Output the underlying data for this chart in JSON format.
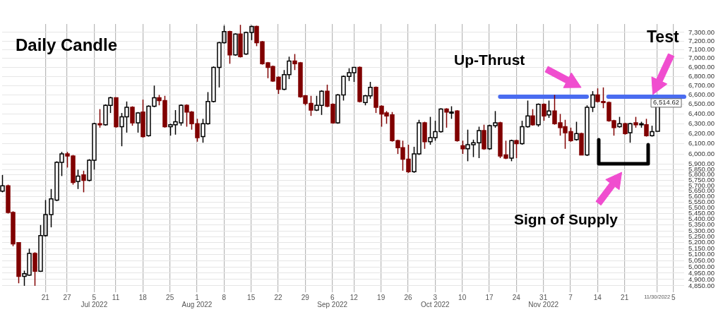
{
  "chart_data": {
    "type": "candlestick",
    "title": "Daily Candle",
    "categories": [
      null,
      null,
      null,
      null,
      null,
      null,
      null,
      null,
      "21",
      null,
      null,
      null,
      "27",
      null,
      null,
      null,
      null,
      "5\nJul 2022",
      null,
      null,
      null,
      "11",
      null,
      null,
      null,
      null,
      "18",
      null,
      null,
      null,
      null,
      "25",
      null,
      null,
      null,
      null,
      "1\nAug 2022",
      null,
      null,
      null,
      null,
      "8",
      null,
      null,
      null,
      null,
      "15",
      null,
      null,
      null,
      null,
      "22",
      null,
      null,
      null,
      null,
      "29",
      null,
      null,
      null,
      null,
      "6\nSep 2022",
      null,
      null,
      null,
      "12",
      null,
      null,
      null,
      null,
      "19",
      null,
      null,
      null,
      null,
      "26",
      null,
      null,
      null,
      null,
      "3\nOct 2022",
      null,
      null,
      null,
      null,
      "10",
      null,
      null,
      null,
      null,
      "17",
      null,
      null,
      null,
      null,
      "24",
      null,
      null,
      null,
      null,
      "31\nNov 2022",
      null,
      null,
      null,
      null,
      "7",
      null,
      null,
      null,
      null,
      "14",
      null,
      null,
      null,
      null,
      "21",
      null,
      null,
      null,
      null,
      null,
      "11/30/2022",
      null,
      null,
      "5",
      null,
      null
    ],
    "ohlc": [
      [
        5650,
        5800,
        5640,
        5700
      ],
      [
        5700,
        5710,
        5450,
        5460
      ],
      [
        5460,
        5470,
        5170,
        5190
      ],
      [
        5200,
        5200,
        4870,
        4925
      ],
      [
        4925,
        4970,
        4850,
        4945
      ],
      [
        4935,
        5150,
        4930,
        5110
      ],
      [
        5110,
        5120,
        4850,
        4965
      ],
      [
        4965,
        5350,
        4960,
        5260
      ],
      [
        5260,
        5570,
        5250,
        5440
      ],
      [
        5440,
        5670,
        5330,
        5580
      ],
      [
        5570,
        5930,
        5560,
        5920
      ],
      [
        5920,
        6020,
        5790,
        6000
      ],
      [
        6000,
        6020,
        5870,
        5980
      ],
      [
        5980,
        5990,
        5710,
        5730
      ],
      [
        5740,
        5850,
        5670,
        5790
      ],
      [
        5800,
        5840,
        5640,
        5750
      ],
      [
        5750,
        5950,
        5740,
        5940
      ],
      [
        5940,
        6310,
        5850,
        6300
      ],
      [
        6300,
        6450,
        6260,
        6290
      ],
      [
        6290,
        6500,
        6280,
        6490
      ],
      [
        6490,
        6580,
        6410,
        6570
      ],
      [
        6570,
        6570,
        6260,
        6270
      ],
      [
        6270,
        6410,
        6075,
        6370
      ],
      [
        6370,
        6530,
        6210,
        6470
      ],
      [
        6470,
        6480,
        6280,
        6310
      ],
      [
        6310,
        6420,
        6210,
        6410
      ],
      [
        6420,
        6550,
        6160,
        6170
      ],
      [
        6180,
        6490,
        6170,
        6480
      ],
      [
        6480,
        6700,
        6470,
        6570
      ],
      [
        6570,
        6600,
        6490,
        6540
      ],
      [
        6540,
        6590,
        6260,
        6270
      ],
      [
        6270,
        6300,
        6180,
        6290
      ],
      [
        6290,
        6440,
        6190,
        6320
      ],
      [
        6310,
        6500,
        6280,
        6490
      ],
      [
        6490,
        6500,
        6270,
        6420
      ],
      [
        6420,
        6430,
        6240,
        6300
      ],
      [
        6300,
        6350,
        6120,
        6160
      ],
      [
        6170,
        6350,
        6110,
        6300
      ],
      [
        6300,
        6630,
        6290,
        6530
      ],
      [
        6530,
        6910,
        6520,
        6900
      ],
      [
        6900,
        7190,
        6680,
        7180
      ],
      [
        7180,
        7380,
        7170,
        7310
      ],
      [
        7310,
        7320,
        6940,
        7040
      ],
      [
        7040,
        7290,
        7030,
        7280
      ],
      [
        7280,
        7390,
        7010,
        7020
      ],
      [
        7050,
        7310,
        7040,
        7300
      ],
      [
        7300,
        7380,
        7210,
        7370
      ],
      [
        7370,
        7380,
        7140,
        7180
      ],
      [
        7190,
        7200,
        6930,
        6940
      ],
      [
        6950,
        6960,
        6780,
        6900
      ],
      [
        6910,
        6920,
        6740,
        6750
      ],
      [
        6790,
        6800,
        6610,
        6660
      ],
      [
        6660,
        6870,
        6650,
        6820
      ],
      [
        6820,
        7020,
        6770,
        6970
      ],
      [
        6970,
        7050,
        6870,
        6940
      ],
      [
        6950,
        6960,
        6570,
        6580
      ],
      [
        6590,
        6600,
        6490,
        6510
      ],
      [
        6510,
        6590,
        6380,
        6440
      ],
      [
        6440,
        6590,
        6430,
        6490
      ],
      [
        6490,
        6650,
        6390,
        6640
      ],
      [
        6640,
        6710,
        6470,
        6480
      ],
      [
        6500,
        6510,
        6300,
        6310
      ],
      [
        6310,
        6610,
        6300,
        6600
      ],
      [
        6600,
        6810,
        6540,
        6800
      ],
      [
        6800,
        6890,
        6750,
        6840
      ],
      [
        6840,
        6900,
        6740,
        6900
      ],
      [
        6900,
        6910,
        6520,
        6530
      ],
      [
        6520,
        6600,
        6490,
        6590
      ],
      [
        6590,
        6740,
        6560,
        6680
      ],
      [
        6680,
        6690,
        6410,
        6470
      ],
      [
        6480,
        6490,
        6270,
        6400
      ],
      [
        6410,
        6430,
        6300,
        6380
      ],
      [
        6390,
        6420,
        6120,
        6130
      ],
      [
        6130,
        6140,
        6000,
        6060
      ],
      [
        6060,
        6130,
        5840,
        5950
      ],
      [
        5950,
        6090,
        5820,
        5830
      ],
      [
        5830,
        6070,
        5820,
        6000
      ],
      [
        6000,
        6340,
        5990,
        6310
      ],
      [
        6310,
        6320,
        6050,
        6120
      ],
      [
        6120,
        6370,
        6090,
        6160
      ],
      [
        6160,
        6330,
        6130,
        6220
      ],
      [
        6220,
        6460,
        6210,
        6450
      ],
      [
        6450,
        6460,
        6260,
        6420
      ],
      [
        6420,
        6480,
        6350,
        6410
      ],
      [
        6430,
        6440,
        6120,
        6130
      ],
      [
        6080,
        6130,
        6000,
        6050
      ],
      [
        6050,
        6240,
        5930,
        6090
      ],
      [
        6090,
        6140,
        5970,
        6110
      ],
      [
        6110,
        6270,
        5960,
        6230
      ],
      [
        6230,
        6290,
        6040,
        6050
      ],
      [
        6050,
        6290,
        6040,
        6280
      ],
      [
        6280,
        6430,
        6260,
        6310
      ],
      [
        6310,
        6320,
        5960,
        5980
      ],
      [
        5990,
        6130,
        5950,
        5960
      ],
      [
        5960,
        6140,
        5930,
        6130
      ],
      [
        6130,
        6140,
        5960,
        6100
      ],
      [
        6100,
        6330,
        6090,
        6270
      ],
      [
        6270,
        6540,
        6260,
        6380
      ],
      [
        6380,
        6450,
        6280,
        6290
      ],
      [
        6290,
        6510,
        6270,
        6500
      ],
      [
        6500,
        6510,
        6330,
        6380
      ],
      [
        6390,
        6540,
        6360,
        6430
      ],
      [
        6430,
        6600,
        6290,
        6300
      ],
      [
        6310,
        6400,
        6180,
        6260
      ],
      [
        6270,
        6340,
        6050,
        6210
      ],
      [
        6220,
        6260,
        6120,
        6130
      ],
      [
        6140,
        6320,
        6130,
        6200
      ],
      [
        6200,
        6210,
        5990,
        5990
      ],
      [
        5990,
        6490,
        5980,
        6470
      ],
      [
        6470,
        6640,
        6420,
        6600
      ],
      [
        6600,
        6670,
        6520,
        6530
      ],
      [
        6530,
        6680,
        6460,
        6520
      ],
      [
        6520,
        6530,
        6320,
        6330
      ],
      [
        6330,
        6340,
        6180,
        6260
      ],
      [
        6270,
        6370,
        6260,
        6300
      ],
      [
        6300,
        6310,
        6190,
        6200
      ],
      [
        6210,
        6310,
        6110,
        6300
      ],
      [
        6310,
        6370,
        6260,
        6290
      ],
      [
        6300,
        6320,
        6260,
        6300
      ],
      [
        6290,
        6350,
        6170,
        6180
      ],
      [
        6180,
        6280,
        6170,
        6220
      ],
      [
        6222.87,
        6515.95,
        6222.87,
        6514.62
      ],
      null,
      null,
      null,
      null,
      null
    ],
    "colors": [
      "#ffffff",
      "#800000",
      "#800000",
      "#800000",
      "#ffffff",
      "#ffffff",
      "#800000",
      "#ffffff",
      "#cccccc",
      "#ffffff",
      "#ffffff",
      "#ffffff",
      "#800000",
      "#800000",
      "#ffffff",
      "#800000",
      "#ffffff",
      "#ffffff",
      "#800000",
      "#ffffff",
      "#ffffff",
      "#800000",
      "#ffffff",
      "#ffffff",
      "#800000",
      "#ffffff",
      "#800000",
      "#ffffff",
      "#ffffff",
      "#800000",
      "#800000",
      "#ffffff",
      "#ffffff",
      "#ffffff",
      "#800000",
      "#800000",
      "#800000",
      "#ffffff",
      "#ffffff",
      "#ffffff",
      "#ffffff",
      "#cccccc",
      "#800000",
      "#ffffff",
      "#800000",
      "#ffffff",
      "#cccccc",
      "#800000",
      "#800000",
      "#800000",
      "#800000",
      "#800000",
      "#ffffff",
      "#ffffff",
      "#800000",
      "#800000",
      "#800000",
      "#800000",
      "#ffffff",
      "#ffffff",
      "#800000",
      "#800000",
      "#ffffff",
      "#ffffff",
      "#ffffff",
      "#ffffff",
      "#800000",
      "#ffffff",
      "#ffffff",
      "#800000",
      "#800000",
      "#800000",
      "#800000",
      "#800000",
      "#800000",
      "#800000",
      "#ffffff",
      "#ffffff",
      "#800000",
      "#ffffff",
      "#ffffff",
      "#ffffff",
      "#800000",
      "#000000",
      "#800000",
      "#800000",
      "#ffffff",
      "#ffffff",
      "#ffffff",
      "#800000",
      "#cccccc",
      "#ffffff",
      "#800000",
      "#800000",
      "#ffffff",
      "#800000",
      "#ffffff",
      "#ffffff",
      "#800000",
      "#ffffff",
      "#800000",
      "#ffffff",
      "#800000",
      "#800000",
      "#800000",
      "#800000",
      "#ffffff",
      "#800000",
      "#ffffff",
      "#ffffff",
      "#800000",
      "#800000",
      "#800000",
      "#800000",
      "#ffffff",
      "#800000",
      "#ffffff",
      "#800000",
      "#000000",
      "#800000",
      "#ffffff",
      "#ffffff",
      null,
      null,
      null,
      null,
      null
    ],
    "series": [
      {
        "type": "line",
        "color": "#4a6cf0",
        "values": [
          null,
          null,
          null,
          null,
          null,
          null,
          null,
          null,
          null,
          null,
          null,
          null,
          null,
          null,
          null,
          null,
          null,
          null,
          null,
          null,
          null,
          null,
          null,
          null,
          null,
          null,
          null,
          null,
          null,
          null,
          null,
          null,
          null,
          null,
          null,
          null,
          null,
          null,
          null,
          null,
          null,
          null,
          null,
          null,
          null,
          null,
          null,
          null,
          null,
          null,
          null,
          null,
          null,
          null,
          null,
          null,
          null,
          null,
          null,
          null,
          null,
          null,
          null,
          null,
          null,
          null,
          null,
          null,
          null,
          null,
          null,
          null,
          null,
          null,
          null,
          null,
          null,
          null,
          null,
          null,
          null,
          null,
          null,
          null,
          null,
          null,
          null,
          null,
          null,
          null,
          null,
          null,
          6580,
          6580,
          6580,
          6580,
          6580,
          6580,
          6580,
          6580,
          6580,
          6580,
          6580,
          6580,
          6580,
          6580,
          6580,
          6580,
          6580,
          null,
          null,
          null,
          6580,
          6580,
          6580,
          6580,
          6580,
          6580,
          6580,
          6580,
          6580,
          6580,
          6580,
          6580,
          6580,
          6580,
          6580
        ]
      }
    ],
    "ylim": [
      4800,
      7400
    ],
    "yticks": [
      {
        "value": 7300,
        "label": "7,300.00"
      },
      {
        "value": 7200,
        "label": "7,200.00"
      },
      {
        "value": 7100,
        "label": "7,100.00"
      },
      {
        "value": 7000,
        "label": "7,000.00"
      },
      {
        "value": 6900,
        "label": "6,900.00"
      },
      {
        "value": 6800,
        "label": "6,800.00"
      },
      {
        "value": 6700,
        "label": "6,700.00"
      },
      {
        "value": 6600,
        "label": "6,600.00"
      },
      {
        "value": 6500,
        "label": "6,500.00"
      },
      {
        "value": 6400,
        "label": "6,400.00"
      },
      {
        "value": 6300,
        "label": "6,300.00"
      },
      {
        "value": 6200,
        "label": "6,200.00"
      },
      {
        "value": 6100,
        "label": "6,100.00"
      },
      {
        "value": 6000,
        "label": "6,000.00"
      },
      {
        "value": 5900,
        "label": "5,900.00"
      },
      {
        "value": 5850,
        "label": "5,850.00"
      },
      {
        "value": 5800,
        "label": "5,800.00"
      },
      {
        "value": 5750,
        "label": "5,750.00"
      },
      {
        "value": 5700,
        "label": "5,700.00"
      },
      {
        "value": 5650,
        "label": "5,650.00"
      },
      {
        "value": 5600,
        "label": "5,600.00"
      },
      {
        "value": 5550,
        "label": "5,550.00"
      },
      {
        "value": 5500,
        "label": "5,500.00"
      },
      {
        "value": 5450,
        "label": "5,450.00"
      },
      {
        "value": 5400,
        "label": "5,400.00"
      },
      {
        "value": 5350,
        "label": "5,350.00"
      },
      {
        "value": 5300,
        "label": "5,300.00"
      },
      {
        "value": 5250,
        "label": "5,250.00"
      },
      {
        "value": 5200,
        "label": "5,200.00"
      },
      {
        "value": 5150,
        "label": "5,150.00"
      },
      {
        "value": 5100,
        "label": "5,100.00"
      },
      {
        "value": 5050,
        "label": "5,050.00"
      },
      {
        "value": 5000,
        "label": "5,000.00"
      },
      {
        "value": 4950,
        "label": "4,950.00"
      },
      {
        "value": 4900,
        "label": "4,900.00"
      },
      {
        "value": 4850,
        "label": "4,850.00"
      }
    ],
    "log": "y",
    "grid": true,
    "annotations": [
      "Up-Thrust",
      "Test",
      "Sign of Supply",
      "6,514.62"
    ]
  }
}
